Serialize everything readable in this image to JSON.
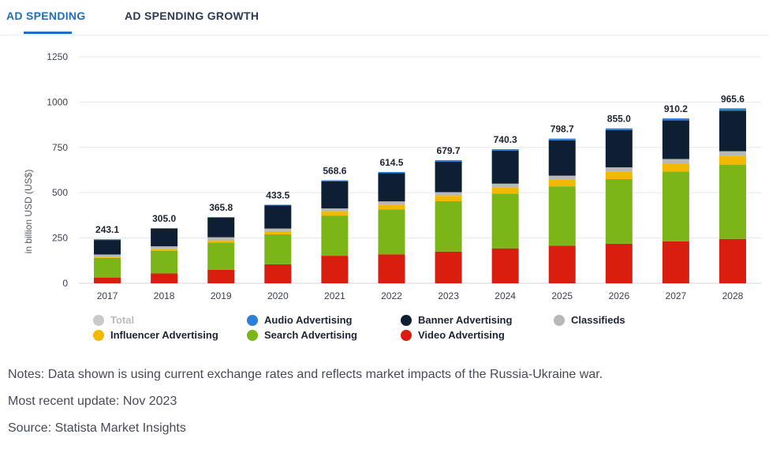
{
  "tabs": [
    {
      "label": "AD SPENDING",
      "active": true
    },
    {
      "label": "AD SPENDING GROWTH",
      "active": false
    }
  ],
  "legend": [
    {
      "key": "total",
      "label": "Total",
      "color": "#c9c9c9",
      "enabled": false
    },
    {
      "key": "audio",
      "label": "Audio Advertising",
      "color": "#2f7ed8",
      "enabled": true
    },
    {
      "key": "banner",
      "label": "Banner Advertising",
      "color": "#0f1f33",
      "enabled": true
    },
    {
      "key": "classifieds",
      "label": "Classifieds",
      "color": "#b8b8b8",
      "enabled": true
    },
    {
      "key": "influencer",
      "label": "Influencer Advertising",
      "color": "#f5b800",
      "enabled": true
    },
    {
      "key": "search",
      "label": "Search Advertising",
      "color": "#7cb518",
      "enabled": true
    },
    {
      "key": "video",
      "label": "Video Advertising",
      "color": "#d81f0f",
      "enabled": true
    }
  ],
  "notes": {
    "notes": "Notes: Data shown is using current exchange rates and reflects market impacts of the Russia-Ukraine war.",
    "update": "Most recent update: Nov 2023",
    "source": "Source: Statista Market Insights"
  },
  "chart_data": {
    "type": "bar",
    "stacked": true,
    "ylabel": "in billion USD (US$)",
    "ylim": [
      0,
      1250
    ],
    "yticks": [
      0,
      250,
      500,
      750,
      1000,
      1250
    ],
    "grid": true,
    "legend_position": "bottom",
    "categories": [
      "2017",
      "2018",
      "2019",
      "2020",
      "2021",
      "2022",
      "2023",
      "2024",
      "2025",
      "2026",
      "2027",
      "2028"
    ],
    "totals": [
      243.1,
      305.0,
      365.8,
      433.5,
      568.6,
      614.5,
      679.7,
      740.3,
      798.7,
      855.0,
      910.2,
      965.6
    ],
    "total_labels": [
      "243.1",
      "305.0",
      "365.8",
      "433.5",
      "568.6",
      "614.5",
      "679.7",
      "740.3",
      "798.7",
      "855.0",
      "910.2",
      "965.6"
    ],
    "series": [
      {
        "name": "Video Advertising",
        "color": "#d81f0f",
        "values": [
          32,
          55,
          75,
          105,
          152,
          160,
          175,
          193,
          207,
          218,
          232,
          245
        ]
      },
      {
        "name": "Search Advertising",
        "color": "#7cb518",
        "values": [
          108,
          125,
          150,
          165,
          222,
          248,
          278,
          302,
          328,
          357,
          385,
          410
        ]
      },
      {
        "name": "Influencer Advertising",
        "color": "#f5b800",
        "values": [
          5,
          8,
          12,
          18,
          22,
          26,
          30,
          33,
          36,
          40,
          43,
          47
        ]
      },
      {
        "name": "Classifieds",
        "color": "#b8b8b8",
        "values": [
          14,
          16,
          17,
          14,
          17,
          18,
          20,
          22,
          23,
          25,
          26,
          27
        ]
      },
      {
        "name": "Banner Advertising",
        "color": "#0f1f33",
        "values": [
          80,
          97,
          108,
          127,
          150,
          156,
          168,
          182,
          195,
          205,
          213,
          224
        ]
      },
      {
        "name": "Audio Advertising",
        "color": "#2f7ed8",
        "values": [
          4.1,
          4.0,
          3.8,
          4.5,
          5.6,
          6.5,
          8.7,
          8.3,
          9.7,
          10.0,
          11.2,
          12.6
        ]
      }
    ]
  }
}
